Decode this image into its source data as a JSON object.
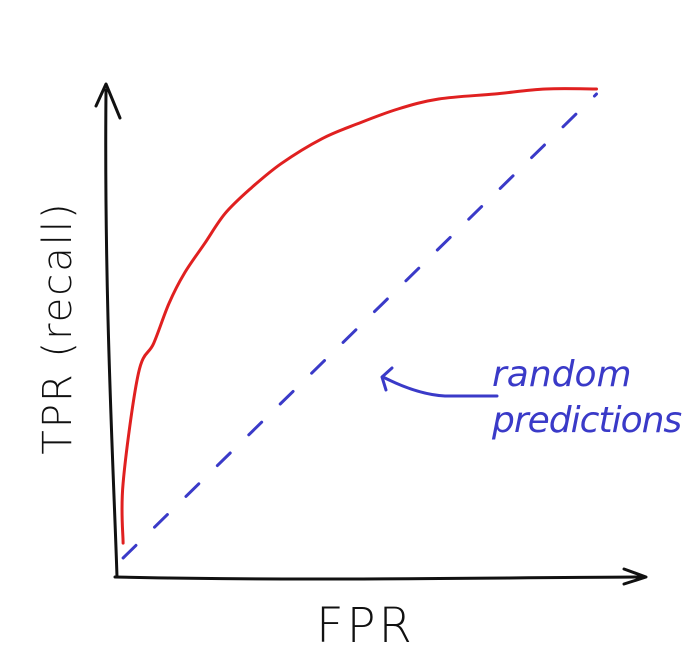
{
  "chart_data": {
    "type": "line",
    "title": "",
    "xlabel": "FPR",
    "ylabel": "TPR (recall)",
    "xlim": [
      0,
      1
    ],
    "ylim": [
      0,
      1
    ],
    "grid": false,
    "series": [
      {
        "color": "#e02020",
        "style": "solid",
        "x": [
          0.01,
          0.01,
          0.04,
          0.07,
          0.1,
          0.13,
          0.17,
          0.21,
          0.26,
          0.32,
          0.4,
          0.47,
          0.55,
          0.63,
          0.74,
          0.84,
          0.94
        ],
        "y": [
          0.08,
          0.2,
          0.42,
          0.48,
          0.56,
          0.62,
          0.68,
          0.74,
          0.79,
          0.84,
          0.89,
          0.92,
          0.95,
          0.97,
          0.98,
          0.99,
          0.99
        ]
      },
      {
        "name": "random predictions",
        "color": "#3a3ac8",
        "style": "dashed",
        "x": [
          0.01,
          0.94
        ],
        "y": [
          0.05,
          0.98
        ]
      }
    ],
    "annotations": [
      {
        "text_lines": [
          "random",
          "predictions"
        ],
        "arrow": "left",
        "color": "#3a3ac8"
      }
    ]
  }
}
